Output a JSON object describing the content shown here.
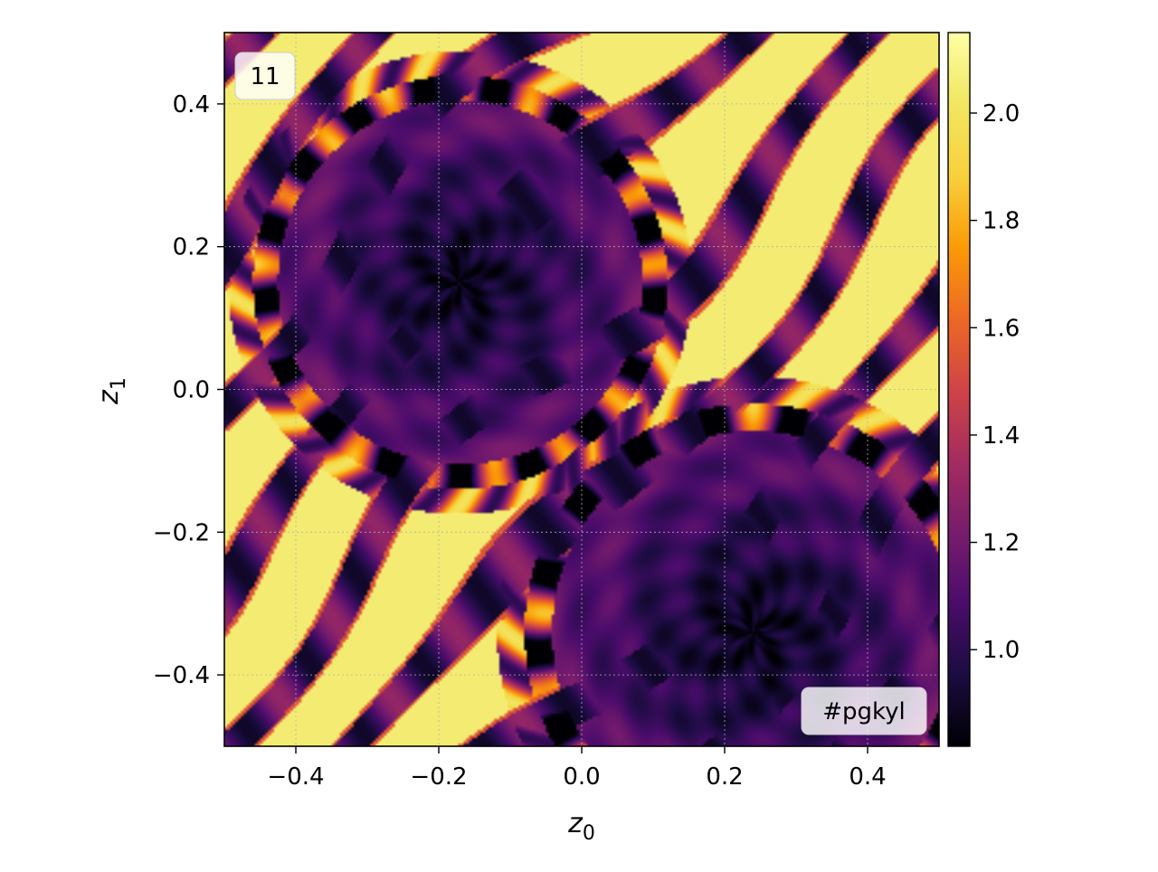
{
  "chart_data": {
    "type": "heatmap",
    "title": "",
    "xlabel": "z",
    "xlabel_sub": "0",
    "ylabel": "z",
    "ylabel_sub": "1",
    "xlim": [
      -0.5,
      0.5
    ],
    "ylim": [
      -0.5,
      0.5
    ],
    "xticks": [
      -0.4,
      -0.2,
      0.0,
      0.2,
      0.4
    ],
    "xtick_labels": [
      "−0.4",
      "−0.2",
      "0.0",
      "0.2",
      "0.4"
    ],
    "yticks": [
      0.4,
      0.2,
      0.0,
      -0.2,
      -0.4
    ],
    "ytick_labels": [
      "0.4",
      "0.2",
      "0.0",
      "−0.2",
      "−0.4"
    ],
    "grid": true,
    "colormap": "inferno",
    "color_range": [
      0.82,
      2.15
    ],
    "colorbar_ticks": [
      2.0,
      1.8,
      1.6,
      1.4,
      1.2,
      1.0
    ],
    "colorbar_tick_labels": [
      "2.0",
      "1.8",
      "1.6",
      "1.4",
      "1.2",
      "1.0"
    ],
    "vortices": [
      {
        "center": [
          -0.17,
          0.15
        ],
        "radius": 0.29,
        "min_value": 0.85
      },
      {
        "center": [
          0.24,
          -0.34
        ],
        "radius": 0.32,
        "min_value": 0.85
      }
    ],
    "frame_label": "11",
    "watermark": "#pgkyl"
  }
}
